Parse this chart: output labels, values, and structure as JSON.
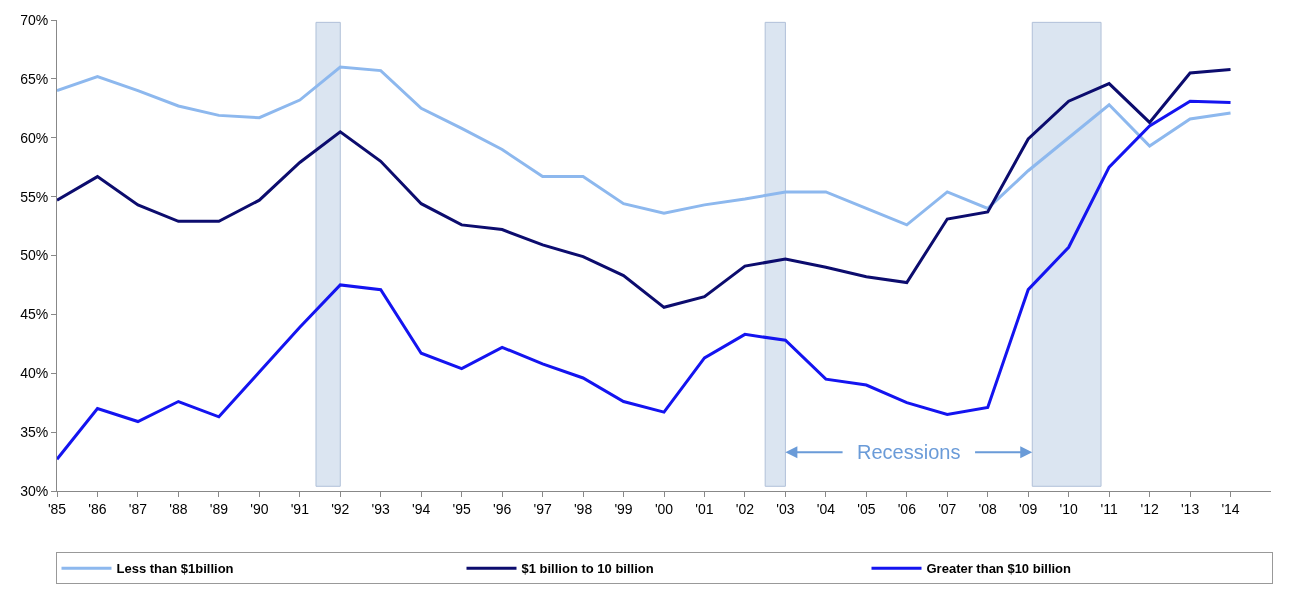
{
  "chart_data": {
    "type": "line",
    "x": [
      1985,
      1986,
      1987,
      1988,
      1989,
      1990,
      1991,
      1992,
      1993,
      1994,
      1995,
      1996,
      1997,
      1998,
      1999,
      2000,
      2001,
      2002,
      2003,
      2004,
      2005,
      2006,
      2007,
      2008,
      2009,
      2010,
      2011,
      2012,
      2013,
      2014
    ],
    "series": [
      {
        "name": "Less than $1billion",
        "color": "#8db8ee",
        "values": [
          64.0,
          65.2,
          64.0,
          62.7,
          61.9,
          61.7,
          63.2,
          66.0,
          65.7,
          62.5,
          60.8,
          59.0,
          56.7,
          56.7,
          54.4,
          53.6,
          54.3,
          54.8,
          55.4,
          55.4,
          54.0,
          52.6,
          55.4,
          54.0,
          57.2,
          60.0,
          62.8,
          59.3,
          61.6,
          62.1
        ]
      },
      {
        "name": "$1 billion to 10 billion",
        "color": "#0c0c6e",
        "values": [
          54.7,
          56.7,
          54.3,
          52.9,
          52.9,
          54.7,
          57.9,
          60.5,
          58.0,
          54.4,
          52.6,
          52.2,
          50.9,
          49.9,
          48.3,
          45.6,
          46.5,
          49.1,
          49.7,
          49.0,
          48.2,
          47.7,
          53.1,
          53.7,
          59.9,
          63.1,
          64.6,
          61.3,
          65.5,
          65.8
        ]
      },
      {
        "name": "Greater than $10 billion",
        "color": "#1414f0",
        "values": [
          32.7,
          37.0,
          35.9,
          37.6,
          36.3,
          40.1,
          43.9,
          47.5,
          47.1,
          41.7,
          40.4,
          42.2,
          40.8,
          39.6,
          37.6,
          36.7,
          41.3,
          43.3,
          42.8,
          39.5,
          39.0,
          37.5,
          36.5,
          37.1,
          47.1,
          50.7,
          57.5,
          61.0,
          63.1,
          63.0
        ]
      }
    ],
    "xlim": [
      1985,
      2015
    ],
    "xticks": [
      {
        "value": 1985,
        "label": "'85"
      },
      {
        "value": 1986,
        "label": "'86"
      },
      {
        "value": 1987,
        "label": "'87"
      },
      {
        "value": 1988,
        "label": "'88"
      },
      {
        "value": 1989,
        "label": "'89"
      },
      {
        "value": 1990,
        "label": "'90"
      },
      {
        "value": 1991,
        "label": "'91"
      },
      {
        "value": 1992,
        "label": "'92"
      },
      {
        "value": 1993,
        "label": "'93"
      },
      {
        "value": 1994,
        "label": "'94"
      },
      {
        "value": 1995,
        "label": "'95"
      },
      {
        "value": 1996,
        "label": "'96"
      },
      {
        "value": 1997,
        "label": "'97"
      },
      {
        "value": 1998,
        "label": "'98"
      },
      {
        "value": 1999,
        "label": "'99"
      },
      {
        "value": 2000,
        "label": "'00"
      },
      {
        "value": 2001,
        "label": "'01"
      },
      {
        "value": 2002,
        "label": "'02"
      },
      {
        "value": 2003,
        "label": "'03"
      },
      {
        "value": 2004,
        "label": "'04"
      },
      {
        "value": 2005,
        "label": "'05"
      },
      {
        "value": 2006,
        "label": "'06"
      },
      {
        "value": 2007,
        "label": "'07"
      },
      {
        "value": 2008,
        "label": "'08"
      },
      {
        "value": 2009,
        "label": "'09"
      },
      {
        "value": 2010,
        "label": "'10"
      },
      {
        "value": 2011,
        "label": "'11"
      },
      {
        "value": 2012,
        "label": "'12"
      },
      {
        "value": 2013,
        "label": "'13"
      },
      {
        "value": 2014,
        "label": "'14"
      }
    ],
    "ylim": [
      30,
      70
    ],
    "yticks": [
      {
        "value": 30,
        "label": "30%"
      },
      {
        "value": 35,
        "label": "35%"
      },
      {
        "value": 40,
        "label": "40%"
      },
      {
        "value": 45,
        "label": "45%"
      },
      {
        "value": 50,
        "label": "50%"
      },
      {
        "value": 55,
        "label": "55%"
      },
      {
        "value": 60,
        "label": "60%"
      },
      {
        "value": 65,
        "label": "65%"
      },
      {
        "value": 70,
        "label": "70%"
      }
    ],
    "bands": [
      {
        "axis": "x",
        "from": 1991.4,
        "to": 1992.0,
        "color": "#dbe5f1"
      },
      {
        "axis": "x",
        "from": 2002.5,
        "to": 2003.0,
        "color": "#dbe5f1"
      },
      {
        "axis": "x",
        "from": 2009.1,
        "to": 2010.8,
        "color": "#dbe5f1"
      }
    ],
    "annotations": [
      {
        "text": "Recessions",
        "x": 2003.0,
        "y": 33.3
      }
    ],
    "grid": false,
    "legend": "bottom",
    "marker": "none",
    "line_style": "solid"
  }
}
